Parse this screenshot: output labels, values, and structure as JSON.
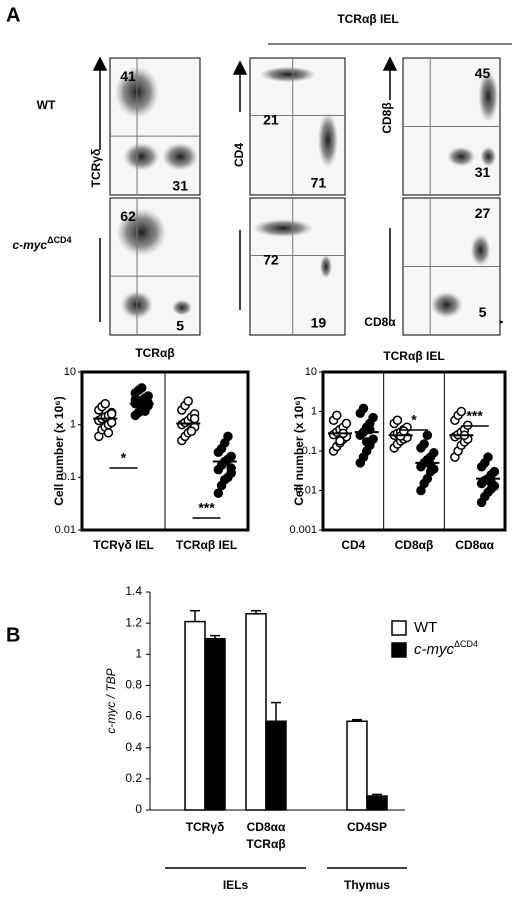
{
  "panel_a": {
    "label": "A",
    "header": "TCRαβ IEL",
    "row_labels": [
      "WT",
      "c-mycΔCD4"
    ],
    "axes": {
      "tcrgd": "TCRγδ",
      "tcrab": "TCRαβ",
      "cd4": "CD4",
      "cd8b": "CD8β",
      "cd8a": "CD8α"
    },
    "quadrants": [
      [
        [
          41,
          31
        ],
        [
          62,
          5
        ]
      ],
      [
        [
          21,
          71
        ],
        [
          72,
          19
        ]
      ],
      [
        [
          45,
          31
        ],
        [
          27,
          5
        ]
      ]
    ]
  },
  "chart_data": [
    {
      "type": "dotplot",
      "ylabel": "Cell number (x 10⁶)",
      "categories": [
        "TCRγδ IEL",
        "TCRαβ IEL"
      ],
      "log_y": true,
      "ylim": [
        0.01,
        10
      ],
      "yticks": [
        0.01,
        0.1,
        1,
        10
      ],
      "annotations": [
        "*",
        "***"
      ],
      "series": [
        {
          "fill": "#ffffff",
          "values": [
            [
              0.6,
              0.8,
              0.9,
              1.0,
              1.1,
              1.2,
              1.3,
              1.4,
              1.5,
              1.7,
              1.9,
              2.2,
              2.5,
              0.7,
              1.6
            ],
            [
              0.5,
              0.6,
              0.7,
              0.8,
              0.9,
              1.0,
              1.1,
              1.2,
              1.4,
              1.6,
              1.9,
              2.3,
              2.8,
              0.75,
              1.3
            ]
          ],
          "means": [
            1.3,
            1.05
          ]
        },
        {
          "fill": "#000000",
          "values": [
            [
              1.5,
              1.7,
              1.9,
              2.1,
              2.3,
              2.5,
              2.7,
              2.9,
              3.2,
              3.5,
              4.0,
              4.5,
              5.0,
              1.8,
              2.6,
              3.0
            ],
            [
              0.05,
              0.07,
              0.09,
              0.1,
              0.12,
              0.14,
              0.17,
              0.2,
              0.22,
              0.25,
              0.3,
              0.35,
              0.45,
              0.6,
              0.15
            ]
          ],
          "means": [
            2.5,
            0.2
          ]
        }
      ]
    },
    {
      "type": "dotplot",
      "title": "TCRαβ IEL",
      "ylabel": "Cell number (x 10⁶)",
      "categories": [
        "CD4",
        "CD8αβ",
        "CD8αα"
      ],
      "log_y": true,
      "ylim": [
        0.001,
        10
      ],
      "yticks": [
        0.001,
        0.01,
        0.1,
        1,
        10
      ],
      "annotations": [
        "*",
        "***"
      ],
      "series": [
        {
          "fill": "#ffffff",
          "values": [
            [
              0.1,
              0.13,
              0.16,
              0.2,
              0.23,
              0.26,
              0.3,
              0.35,
              0.4,
              0.5,
              0.6,
              0.8,
              0.18,
              0.28
            ],
            [
              0.12,
              0.15,
              0.18,
              0.2,
              0.22,
              0.25,
              0.28,
              0.3,
              0.35,
              0.4,
              0.5,
              0.6,
              0.24,
              0.32
            ],
            [
              0.07,
              0.1,
              0.14,
              0.17,
              0.2,
              0.23,
              0.26,
              0.3,
              0.35,
              0.45,
              0.6,
              0.8,
              1.0,
              0.25
            ]
          ],
          "means": [
            0.28,
            0.25,
            0.25
          ]
        },
        {
          "fill": "#000000",
          "values": [
            [
              0.05,
              0.07,
              0.1,
              0.14,
              0.2,
              0.25,
              0.3,
              0.4,
              0.5,
              0.7,
              0.9,
              1.2,
              0.17,
              0.35
            ],
            [
              0.01,
              0.015,
              0.02,
              0.03,
              0.035,
              0.04,
              0.05,
              0.06,
              0.07,
              0.09,
              0.12,
              0.15,
              0.25,
              0.045
            ],
            [
              0.005,
              0.007,
              0.009,
              0.011,
              0.013,
              0.015,
              0.018,
              0.02,
              0.025,
              0.03,
              0.04,
              0.05,
              0.07,
              0.016
            ]
          ],
          "means": [
            0.3,
            0.05,
            0.02
          ]
        }
      ]
    },
    {
      "type": "bar",
      "label": "B",
      "ylabel": "c-myc / TBP",
      "categories": [
        "TCRγδ",
        [
          "CD8αα",
          "TCRαβ"
        ],
        "CD4SP"
      ],
      "groups": [
        {
          "name": "IELs",
          "categories": 2
        },
        {
          "name": "Thymus",
          "categories": 1
        }
      ],
      "ylim": [
        0,
        1.4
      ],
      "yticks": [
        0,
        0.2,
        0.4,
        0.6,
        0.8,
        1,
        1.2,
        1.4
      ],
      "series": [
        {
          "name": "WT",
          "color": "#ffffff",
          "values": [
            1.21,
            1.26,
            0.57
          ],
          "errors": [
            0.07,
            0.02,
            0.01
          ]
        },
        {
          "name": "c-mycΔCD4",
          "color": "#000000",
          "values": [
            1.1,
            0.57,
            0.09
          ],
          "errors": [
            0.02,
            0.12,
            0.01
          ]
        }
      ]
    }
  ]
}
